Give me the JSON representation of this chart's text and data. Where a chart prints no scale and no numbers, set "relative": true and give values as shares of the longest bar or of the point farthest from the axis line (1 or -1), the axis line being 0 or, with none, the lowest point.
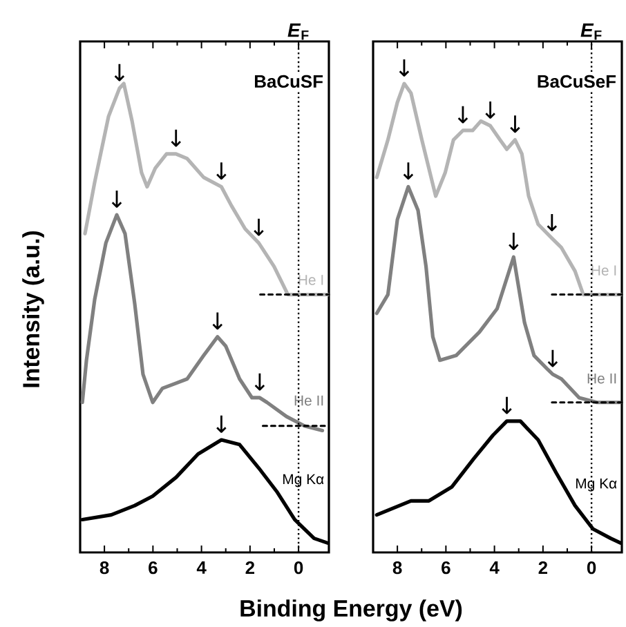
{
  "chart_data": [
    {
      "type": "line",
      "title": "BaCuSF",
      "xlabel": "Binding Energy (eV)",
      "ylabel": "Intensity (a.u.)",
      "relative": true,
      "xlim": [
        9,
        -1.25
      ],
      "xticks": [
        8,
        6,
        4,
        2,
        0
      ],
      "line_style": "solid",
      "marker": "none",
      "ref_lines": [
        {
          "axis": "x",
          "value": 0,
          "label": "*E*$_{F}$",
          "line_style": "dotted"
        }
      ],
      "series": [
        {
          "name": "He I",
          "color": "#b4b4b4",
          "x": [
            8.8,
            8.4,
            7.83,
            7.38,
            7.2,
            6.86,
            6.47,
            6.24,
            5.9,
            5.44,
            5.05,
            4.59,
            3.91,
            3.18,
            2.77,
            2.2,
            1.64,
            1.01,
            0.44,
            -0.07,
            -1.2
          ],
          "values": [
            0.68,
            0.79,
            0.93,
            0.99,
            1.0,
            0.92,
            0.81,
            0.78,
            0.82,
            0.85,
            0.85,
            0.84,
            0.8,
            0.78,
            0.74,
            0.69,
            0.66,
            0.61,
            0.55,
            0.55,
            0.55
          ]
        },
        {
          "name": "He II",
          "color": "#808080",
          "x": [
            8.91,
            8.74,
            8.4,
            7.94,
            7.49,
            7.15,
            6.75,
            6.41,
            6.01,
            5.61,
            4.59,
            3.91,
            3.34,
            3.0,
            2.43,
            1.92,
            1.6,
            1.3,
            0.5,
            -0.24,
            -0.98
          ],
          "values": [
            0.32,
            0.41,
            0.54,
            0.66,
            0.72,
            0.68,
            0.53,
            0.38,
            0.32,
            0.35,
            0.37,
            0.42,
            0.46,
            0.44,
            0.37,
            0.33,
            0.33,
            0.32,
            0.29,
            0.27,
            0.26
          ]
        },
        {
          "name": "Mg Kα",
          "color": "#000000",
          "x": [
            8.91,
            7.72,
            6.75,
            6.01,
            5.05,
            4.14,
            3.18,
            2.43,
            1.64,
            0.9,
            0.16,
            -0.64,
            -1.2
          ],
          "values": [
            0.07,
            0.08,
            0.1,
            0.12,
            0.16,
            0.21,
            0.24,
            0.23,
            0.18,
            0.13,
            0.07,
            0.03,
            0.02
          ]
        },
        {
          "color": "#000000",
          "line_style": "dashed",
          "x": [
            1.58,
            -1.25
          ],
          "values": [
            0.55,
            0.55
          ]
        },
        {
          "color": "#000000",
          "line_style": "dashed",
          "x": [
            1.47,
            -1.25
          ],
          "values": [
            0.27,
            0.27
          ]
        }
      ],
      "annotations": [
        {
          "text": "↓",
          "x": 7.38,
          "y": 0.99
        },
        {
          "text": "↓",
          "x": 5.05,
          "y": 0.85
        },
        {
          "text": "↓",
          "x": 3.18,
          "y": 0.78
        },
        {
          "text": "↓",
          "x": 1.64,
          "y": 0.66
        },
        {
          "text": "↓",
          "x": 7.49,
          "y": 0.72
        },
        {
          "text": "↓",
          "x": 3.34,
          "y": 0.46
        },
        {
          "text": "↓",
          "x": 1.6,
          "y": 0.33
        },
        {
          "text": "↓",
          "x": 3.18,
          "y": 0.24
        }
      ]
    },
    {
      "type": "line",
      "title": "BaCuSeF",
      "relative": true,
      "xlim": [
        9,
        -1.25
      ],
      "xticks": [
        8,
        6,
        4,
        2,
        0
      ],
      "line_style": "solid",
      "marker": "none",
      "ref_lines": [
        {
          "axis": "x",
          "value": 0,
          "label": "*E*$_{F}$",
          "line_style": "dotted"
        }
      ],
      "series": [
        {
          "name": "He I",
          "color": "#b4b4b4",
          "x": [
            8.85,
            8.39,
            8.0,
            7.72,
            7.44,
            6.99,
            6.42,
            6.03,
            5.69,
            5.3,
            4.9,
            4.56,
            4.17,
            3.77,
            3.49,
            3.15,
            2.87,
            2.59,
            2.2,
            1.63,
            1.24,
            0.68,
            0.34,
            -0.06,
            -1.2
          ],
          "values": [
            0.8,
            0.88,
            0.96,
            1.0,
            0.98,
            0.88,
            0.76,
            0.81,
            0.88,
            0.9,
            0.9,
            0.92,
            0.91,
            0.88,
            0.86,
            0.88,
            0.85,
            0.76,
            0.7,
            0.67,
            0.65,
            0.6,
            0.55,
            0.55,
            0.55
          ]
        },
        {
          "name": "He II",
          "color": "#808080",
          "x": [
            8.85,
            8.39,
            8.0,
            7.55,
            7.15,
            6.82,
            6.54,
            6.25,
            5.58,
            4.62,
            3.89,
            3.21,
            2.76,
            2.37,
            1.8,
            1.6,
            1.24,
            0.51,
            -0.23,
            -1.18
          ],
          "values": [
            0.51,
            0.55,
            0.71,
            0.78,
            0.73,
            0.61,
            0.46,
            0.41,
            0.42,
            0.47,
            0.52,
            0.63,
            0.49,
            0.42,
            0.39,
            0.38,
            0.37,
            0.33,
            0.32,
            0.32
          ]
        },
        {
          "name": "Mg Kα",
          "color": "#000000",
          "x": [
            8.85,
            7.44,
            6.7,
            5.75,
            4.85,
            4.06,
            3.49,
            2.93,
            2.2,
            1.46,
            0.68,
            -0.06,
            -0.79,
            -1.2
          ],
          "values": [
            0.08,
            0.11,
            0.11,
            0.14,
            0.2,
            0.25,
            0.28,
            0.28,
            0.24,
            0.17,
            0.1,
            0.05,
            0.03,
            0.02
          ]
        },
        {
          "color": "#000000",
          "line_style": "dashed",
          "x": [
            1.63,
            -1.25
          ],
          "values": [
            0.55,
            0.55
          ]
        },
        {
          "color": "#000000",
          "line_style": "dashed",
          "x": [
            1.63,
            -1.25
          ],
          "values": [
            0.32,
            0.32
          ]
        }
      ],
      "annotations": [
        {
          "text": "↓",
          "x": 7.72,
          "y": 1.0
        },
        {
          "text": "↓",
          "x": 5.3,
          "y": 0.9
        },
        {
          "text": "↓",
          "x": 4.17,
          "y": 0.91
        },
        {
          "text": "↓",
          "x": 3.15,
          "y": 0.88
        },
        {
          "text": "↓",
          "x": 1.63,
          "y": 0.67
        },
        {
          "text": "↓",
          "x": 7.55,
          "y": 0.78
        },
        {
          "text": "↓",
          "x": 3.21,
          "y": 0.63
        },
        {
          "text": "↓",
          "x": 1.6,
          "y": 0.38
        },
        {
          "text": "↓",
          "x": 3.49,
          "y": 0.28
        }
      ]
    }
  ]
}
